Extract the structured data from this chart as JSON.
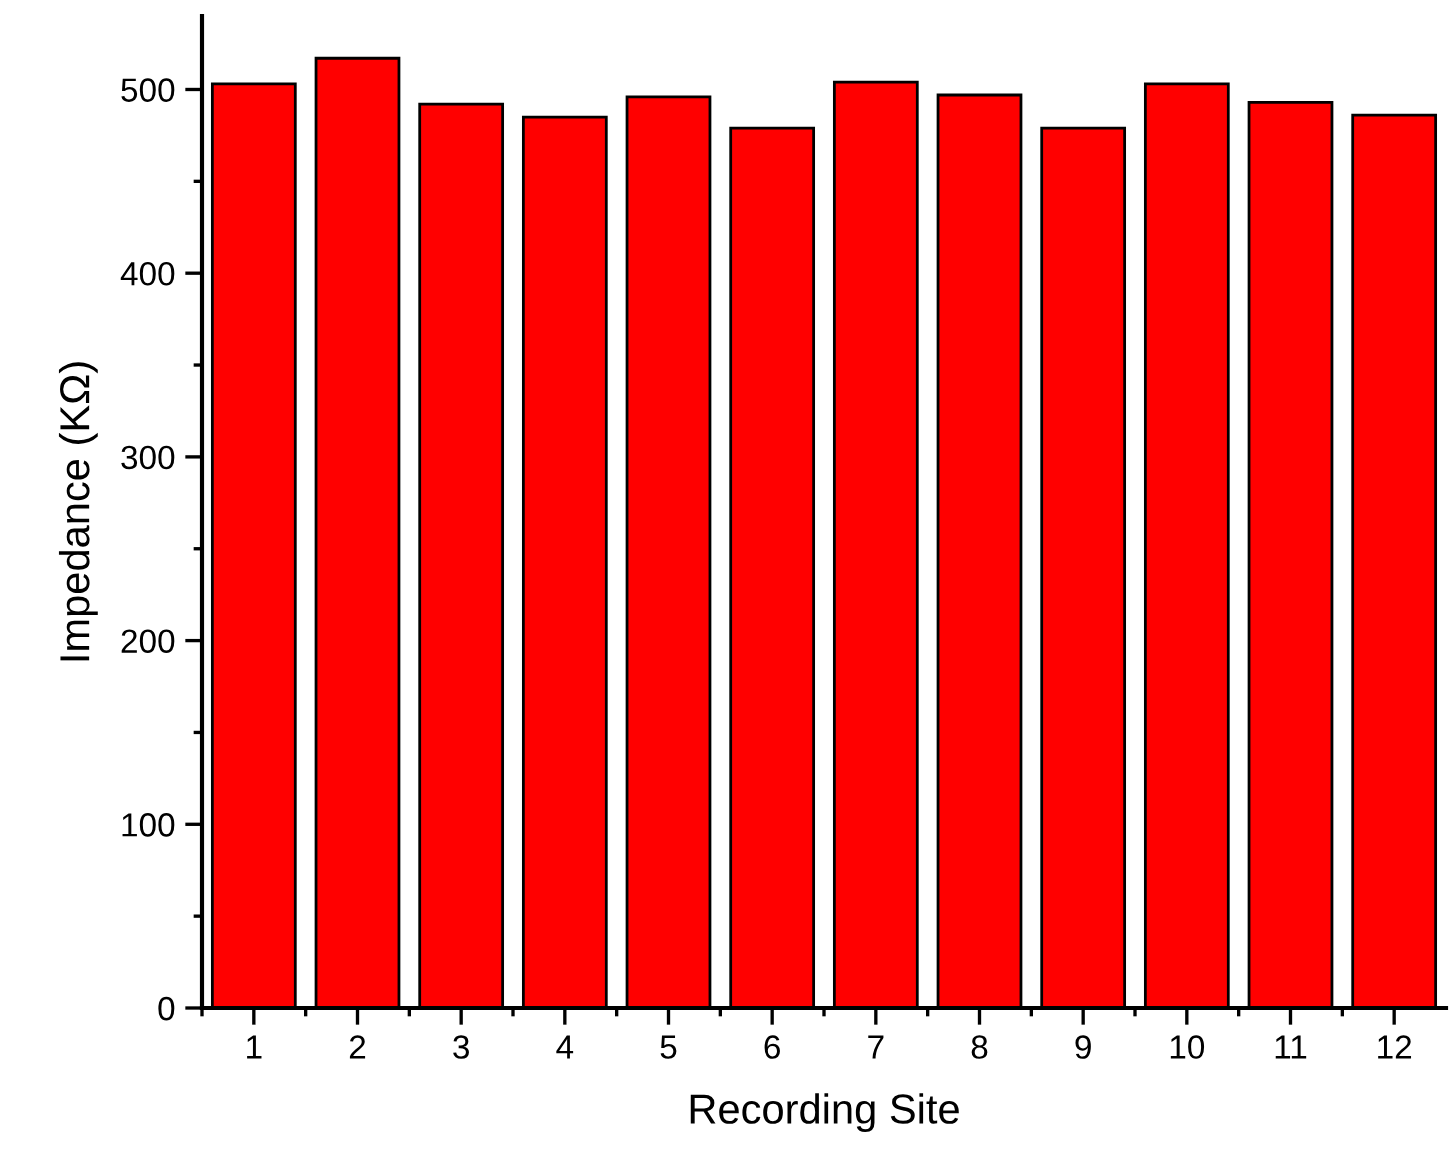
{
  "chart_data": {
    "type": "bar",
    "xlabel": "Recording Site",
    "ylabel": "Impedance (KΩ)",
    "categories": [
      "1",
      "2",
      "3",
      "4",
      "5",
      "6",
      "7",
      "8",
      "9",
      "10",
      "11",
      "12"
    ],
    "values": [
      503,
      517,
      492,
      485,
      496,
      479,
      504,
      497,
      479,
      503,
      493,
      486
    ],
    "color": "#ff0000",
    "ylim": [
      0,
      540
    ],
    "yticks": [
      0,
      100,
      200,
      300,
      400,
      500
    ],
    "grid": false,
    "legend": false
  }
}
